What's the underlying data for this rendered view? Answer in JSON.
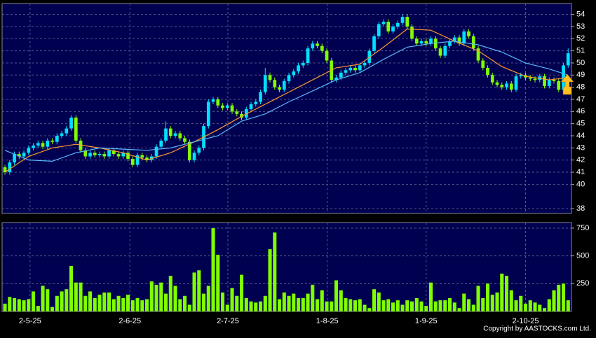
{
  "chart_data": [
    {
      "type": "candlestick",
      "open": [
        41.4,
        41.0,
        41.8,
        42.5,
        42.3,
        42.6,
        43.0,
        43.2,
        43.4,
        43.1,
        43.6,
        43.5,
        44.0,
        44.2,
        44.6,
        45.5,
        43.6,
        42.8,
        42.3,
        42.6,
        42.4,
        42.5,
        42.3,
        42.8,
        42.5,
        42.3,
        42.6,
        42.1,
        41.6,
        42.4,
        42.2,
        42.0,
        42.3,
        43.1,
        43.6,
        44.6,
        44.0,
        44.2,
        43.8,
        43.5,
        42.0,
        42.6,
        43.0,
        44.8,
        46.8,
        47.0,
        46.5,
        46.3,
        46.5,
        46.0,
        45.8,
        45.5,
        46.2,
        46.6,
        46.8,
        47.6,
        49.0,
        48.6,
        48.0,
        47.8,
        48.5,
        49.0,
        49.3,
        49.8,
        50.0,
        51.2,
        51.6,
        51.4,
        51.0,
        50.2,
        48.6,
        48.8,
        49.2,
        49.4,
        49.6,
        49.4,
        49.8,
        50.0,
        51.0,
        52.2,
        53.2,
        53.4,
        52.6,
        53.0,
        53.3,
        53.8,
        53.0,
        52.0,
        51.6,
        51.8,
        51.6,
        52.0,
        51.2,
        50.6,
        51.4,
        51.8,
        52.1,
        51.6,
        52.6,
        52.2,
        51.2,
        50.2,
        49.6,
        49.0,
        48.4,
        48.2,
        48.0,
        48.3,
        47.8,
        48.9,
        49.0,
        48.8,
        48.7,
        48.6,
        48.9,
        48.1,
        48.6,
        48.5,
        47.8,
        49.8
      ],
      "high": [
        41.6,
        42.0,
        42.7,
        42.7,
        42.8,
        43.2,
        43.4,
        43.6,
        43.6,
        43.8,
        43.8,
        44.2,
        44.4,
        44.8,
        45.7,
        45.7,
        43.8,
        43.0,
        42.8,
        42.8,
        42.7,
        42.7,
        43.0,
        43.0,
        42.7,
        42.8,
        42.8,
        42.3,
        42.6,
        42.6,
        42.4,
        42.5,
        43.3,
        43.8,
        45.2,
        44.8,
        44.4,
        44.4,
        44.0,
        43.7,
        42.8,
        43.2,
        45.0,
        47.0,
        47.2,
        47.2,
        46.7,
        46.7,
        46.7,
        46.2,
        46.0,
        46.4,
        46.8,
        47.0,
        47.8,
        49.6,
        49.2,
        48.8,
        48.2,
        48.7,
        49.2,
        49.5,
        50.0,
        50.2,
        51.4,
        51.8,
        51.8,
        51.6,
        51.2,
        50.4,
        49.0,
        49.4,
        49.6,
        49.8,
        49.8,
        50.0,
        50.2,
        51.2,
        52.4,
        53.4,
        53.6,
        53.6,
        53.2,
        53.5,
        54.0,
        54.0,
        53.2,
        52.2,
        52.0,
        52.0,
        52.2,
        52.2,
        51.4,
        51.6,
        52.0,
        52.3,
        52.3,
        52.8,
        52.8,
        52.4,
        51.4,
        50.4,
        49.8,
        49.2,
        48.6,
        48.4,
        48.5,
        48.5,
        49.1,
        49.2,
        49.2,
        49.0,
        48.9,
        49.1,
        49.1,
        48.8,
        48.8,
        48.7,
        50.0,
        51.2
      ],
      "low": [
        40.8,
        40.8,
        41.6,
        42.1,
        42.1,
        42.4,
        42.8,
        43.0,
        42.9,
        42.9,
        43.3,
        43.3,
        43.8,
        44.0,
        44.4,
        43.4,
        42.6,
        42.1,
        42.1,
        42.2,
        42.2,
        42.1,
        42.1,
        42.3,
        42.1,
        42.1,
        41.9,
        41.4,
        41.4,
        42.0,
        41.8,
        41.8,
        42.1,
        42.9,
        43.4,
        43.8,
        43.8,
        43.6,
        43.3,
        41.8,
        41.8,
        42.4,
        42.8,
        44.6,
        46.6,
        46.3,
        46.1,
        46.1,
        45.8,
        45.6,
        45.3,
        45.3,
        46.0,
        46.4,
        46.6,
        47.4,
        48.4,
        47.8,
        47.6,
        47.6,
        48.3,
        48.8,
        49.1,
        49.6,
        49.8,
        51.0,
        51.2,
        50.8,
        50.0,
        48.4,
        48.4,
        48.6,
        49.0,
        49.2,
        49.2,
        49.2,
        49.6,
        49.8,
        50.8,
        52.0,
        53.0,
        52.4,
        52.4,
        52.8,
        53.1,
        52.8,
        51.8,
        51.4,
        51.4,
        51.4,
        51.4,
        51.0,
        50.4,
        50.4,
        51.2,
        51.6,
        51.4,
        51.4,
        52.0,
        51.0,
        50.0,
        49.4,
        48.8,
        48.2,
        48.0,
        47.8,
        47.8,
        47.6,
        47.6,
        48.7,
        48.6,
        48.5,
        48.4,
        48.4,
        47.9,
        47.9,
        48.3,
        47.6,
        47.6,
        49.6
      ],
      "close": [
        41.0,
        41.8,
        42.5,
        42.3,
        42.6,
        43.0,
        43.2,
        43.4,
        43.1,
        43.6,
        43.5,
        44.0,
        44.2,
        44.6,
        45.5,
        43.6,
        42.8,
        42.3,
        42.6,
        42.4,
        42.5,
        42.3,
        42.8,
        42.5,
        42.3,
        42.6,
        42.1,
        41.6,
        42.4,
        42.2,
        42.0,
        42.3,
        43.1,
        43.6,
        44.6,
        44.0,
        44.2,
        43.8,
        43.5,
        42.0,
        42.6,
        43.0,
        44.8,
        46.8,
        47.0,
        46.5,
        46.3,
        46.5,
        46.0,
        45.8,
        45.5,
        46.2,
        46.6,
        46.8,
        47.6,
        49.0,
        48.6,
        48.0,
        47.8,
        48.5,
        49.0,
        49.3,
        49.8,
        50.0,
        51.2,
        51.6,
        51.4,
        51.0,
        50.2,
        48.6,
        48.8,
        49.2,
        49.4,
        49.6,
        49.4,
        49.8,
        50.0,
        51.0,
        52.2,
        53.2,
        53.4,
        52.6,
        53.0,
        53.3,
        53.8,
        53.0,
        52.0,
        51.6,
        51.8,
        51.6,
        52.0,
        51.2,
        50.6,
        51.4,
        51.8,
        52.1,
        51.6,
        52.6,
        52.2,
        51.2,
        50.2,
        49.6,
        49.0,
        48.4,
        48.2,
        48.0,
        48.3,
        47.8,
        48.9,
        49.0,
        48.8,
        48.7,
        48.6,
        48.9,
        48.1,
        48.6,
        48.5,
        47.8,
        49.8,
        50.8
      ],
      "up_color": "#00e0ff",
      "down_color": "#80ff00",
      "series": [
        {
          "color": "#ff9a30",
          "x": [
            0,
            5,
            10,
            15,
            20,
            25,
            30,
            35,
            40,
            45,
            50,
            55,
            60,
            65,
            70,
            75,
            80,
            85,
            90,
            95,
            100,
            105,
            110,
            115,
            119
          ],
          "values": [
            41.0,
            42.3,
            43.0,
            43.3,
            43.0,
            42.6,
            42.0,
            42.6,
            43.5,
            44.5,
            45.6,
            46.6,
            47.6,
            48.6,
            49.6,
            49.9,
            51.3,
            52.8,
            52.7,
            51.8,
            51.0,
            49.7,
            48.9,
            48.6,
            48.8
          ]
        },
        {
          "color": "#5ab8ff",
          "x": [
            0,
            5,
            10,
            15,
            20,
            25,
            30,
            35,
            40,
            45,
            50,
            55,
            60,
            65,
            70,
            75,
            80,
            85,
            90,
            95,
            100,
            105,
            110,
            115,
            119
          ],
          "values": [
            42.8,
            42.0,
            41.9,
            42.6,
            43.0,
            42.9,
            42.8,
            43.0,
            43.5,
            44.0,
            45.2,
            45.8,
            46.8,
            47.7,
            48.6,
            49.2,
            50.3,
            51.3,
            51.6,
            51.8,
            51.5,
            50.9,
            50.0,
            49.5,
            49.0
          ]
        }
      ],
      "xlim": [
        -0.6,
        119.7
      ],
      "ylim": [
        37.6,
        54.9
      ],
      "yticks": [
        38,
        40,
        41,
        42,
        43,
        44,
        45,
        46,
        47,
        48,
        49,
        50,
        51,
        52,
        53,
        54
      ],
      "grid": true
    },
    {
      "type": "bar",
      "values": [
        70,
        130,
        120,
        110,
        100,
        110,
        180,
        50,
        230,
        200,
        40,
        140,
        180,
        200,
        410,
        260,
        260,
        140,
        180,
        120,
        150,
        170,
        170,
        110,
        140,
        120,
        150,
        100,
        120,
        100,
        110,
        270,
        240,
        260,
        160,
        320,
        230,
        110,
        140,
        60,
        350,
        370,
        160,
        230,
        750,
        510,
        170,
        60,
        210,
        140,
        330,
        120,
        90,
        80,
        90,
        140,
        560,
        710,
        110,
        170,
        140,
        160,
        120,
        120,
        160,
        240,
        110,
        190,
        90,
        90,
        280,
        190,
        120,
        110,
        100,
        110,
        60,
        30,
        200,
        170,
        100,
        110,
        80,
        100,
        60,
        100,
        90,
        120,
        90,
        50,
        260,
        90,
        100,
        100,
        120,
        80,
        30,
        160,
        110,
        60,
        230,
        120,
        250,
        150,
        170,
        340,
        320,
        190,
        100,
        140,
        70,
        100,
        80,
        60,
        30,
        110,
        190,
        240,
        250,
        100
      ],
      "color": "#7fff00",
      "xlim": [
        -0.6,
        119.7
      ],
      "ylim": [
        0,
        800
      ],
      "yticks": [
        250,
        500,
        750
      ],
      "xticks": [
        {
          "value": 5.3,
          "label": "2-5-25"
        },
        {
          "value": 26.4,
          "label": "2-6-25"
        },
        {
          "value": 47.1,
          "label": "2-7-25"
        },
        {
          "value": 68.1,
          "label": "1-8-25"
        },
        {
          "value": 89,
          "label": "1-9-25"
        },
        {
          "value": 110,
          "label": "2-10-25"
        }
      ],
      "grid": true
    }
  ],
  "footer": "Copyright by AASTOCKS.com Ltd."
}
